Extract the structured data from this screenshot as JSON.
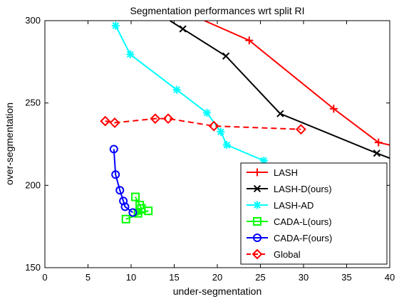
{
  "chart_data": {
    "type": "line",
    "title": "Segmentation performances wrt split RI",
    "xlabel": "under-segmentation",
    "ylabel": "over-segmentation",
    "xlim": [
      0,
      40
    ],
    "ylim": [
      150,
      300
    ],
    "xticks": [
      0,
      5,
      10,
      15,
      20,
      25,
      30,
      35,
      40
    ],
    "yticks": [
      150,
      200,
      250,
      300
    ],
    "legend_position": "bottom-right",
    "series": [
      {
        "name": "LASH",
        "color": "#ff0000",
        "marker": "plus",
        "linestyle": "solid",
        "points": [
          [
            18.5,
            300
          ],
          [
            23.7,
            288
          ],
          [
            33.5,
            246.5
          ],
          [
            38.7,
            226
          ],
          [
            40,
            224.5
          ]
        ],
        "marked": [
          false,
          true,
          true,
          true,
          false
        ]
      },
      {
        "name": "LASH-D(ours)",
        "color": "#000000",
        "marker": "x",
        "linestyle": "solid",
        "points": [
          [
            14.5,
            300
          ],
          [
            16,
            295
          ],
          [
            21,
            278.5
          ],
          [
            27.3,
            243.5
          ],
          [
            38.5,
            219.5
          ],
          [
            40,
            216.5
          ]
        ],
        "marked": [
          false,
          true,
          true,
          true,
          true,
          false
        ]
      },
      {
        "name": "LASH-AD",
        "color": "#00ffff",
        "marker": "star",
        "linestyle": "solid",
        "points": [
          [
            8.2,
            297
          ],
          [
            9.9,
            279.5
          ],
          [
            15.3,
            258
          ],
          [
            18.8,
            244
          ],
          [
            20.4,
            232.5
          ],
          [
            21.1,
            224.5
          ],
          [
            25.4,
            215
          ]
        ],
        "marked": [
          true,
          true,
          true,
          true,
          true,
          true,
          true
        ]
      },
      {
        "name": "CADA-L(ours)",
        "color": "#00ff00",
        "marker": "square",
        "linestyle": "solid",
        "points": [
          [
            10.5,
            193
          ],
          [
            11.0,
            188
          ],
          [
            11.2,
            186
          ],
          [
            10.8,
            183
          ],
          [
            12.0,
            184.5
          ],
          [
            9.4,
            179.5
          ]
        ],
        "marked": [
          true,
          true,
          true,
          true,
          true,
          true
        ]
      },
      {
        "name": "CADA-F(ours)",
        "color": "#0000ff",
        "marker": "circle",
        "linestyle": "solid",
        "points": [
          [
            8.0,
            222
          ],
          [
            8.2,
            206.5
          ],
          [
            8.7,
            197
          ],
          [
            9.1,
            190.5
          ],
          [
            9.3,
            187
          ],
          [
            10.2,
            183.5
          ]
        ],
        "marked": [
          true,
          true,
          true,
          true,
          true,
          true
        ]
      },
      {
        "name": "Global",
        "color": "#ff0000",
        "marker": "diamond",
        "linestyle": "dashed",
        "points": [
          [
            7.0,
            239
          ],
          [
            8.1,
            238
          ],
          [
            12.8,
            240.5
          ],
          [
            14.3,
            240.5
          ],
          [
            19.6,
            236
          ],
          [
            29.7,
            234
          ]
        ],
        "marked": [
          true,
          true,
          true,
          true,
          true,
          true
        ]
      }
    ]
  }
}
